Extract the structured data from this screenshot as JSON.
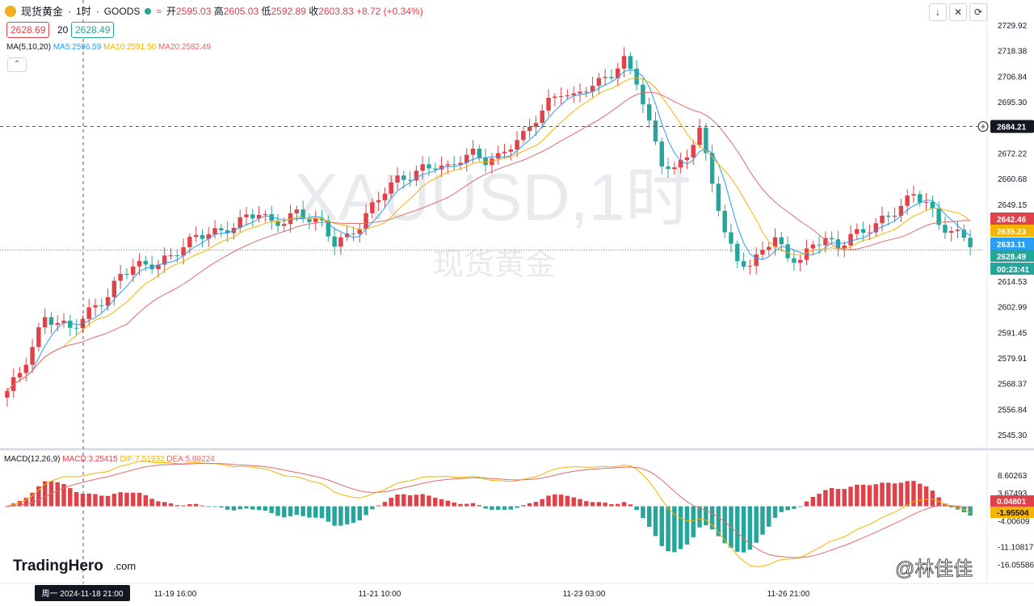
{
  "header": {
    "symbol_name": "现货黄金",
    "interval": "1时",
    "source": "GOODS",
    "open_label": "开",
    "open": "2595.03",
    "high_label": "高",
    "high": "2605.03",
    "low_label": "低",
    "low": "2592.89",
    "close_label": "收",
    "close": "2603.83",
    "change": "+8.72 (+0.34%)"
  },
  "trade": {
    "sell": "2628.69",
    "spread": "20",
    "buy": "2628.49"
  },
  "ma_legend": {
    "label": "MA(5,10,20)",
    "ma5": "MA5:2596.59",
    "ma10": "MA10:2591.50",
    "ma20": "MA20:2582.49"
  },
  "macd_legend": {
    "label": "MACD(12,26,9)",
    "macd": "MACD:3.25415",
    "dif": "DIF:7.51932",
    "dea": "DEA:5.89224"
  },
  "watermark": {
    "line1": "XAUUSD,1时",
    "line2": "现货黄金"
  },
  "brand": {
    "name": "TradingHero",
    "suffix": ".com"
  },
  "author": "@林佳佳",
  "colors": {
    "up": "#e0424a",
    "down": "#26a69a",
    "ma5": "#2a9df4",
    "ma10": "#f5b400",
    "ma20": "#e26b6b"
  },
  "chart_data": [
    {
      "type": "candlestick",
      "title": "现货黄金 · 1时 · GOODS",
      "ylim": [
        2545.3,
        2729.92
      ],
      "y_ticks": [
        "2729.92",
        "2718.38",
        "2706.84",
        "2695.30",
        "2672.22",
        "2660.68",
        "2649.15",
        "2614.53",
        "2602.99",
        "2591.45",
        "2579.91",
        "2568.37",
        "2556.84",
        "2545.30"
      ],
      "x_ticks": [
        "11-19 16:00",
        "11-21 10:00",
        "11-23 03:00",
        "11-26 21:00"
      ],
      "crosshair_x_label": "周一 2024-11-18  21:00",
      "crosshair_price": "2684.21",
      "price_badges": [
        {
          "value": "2642.46",
          "color": "#e0424a"
        },
        {
          "value": "2635.23",
          "color": "#f5b400"
        },
        {
          "value": "2633.11",
          "color": "#2a9df4"
        },
        {
          "value": "2628.49",
          "color": "#26a69a"
        },
        {
          "value": "00:23:41",
          "color": "#26a69a"
        }
      ],
      "series_names": [
        "MA5",
        "MA10",
        "MA20"
      ],
      "close_path": [
        2565,
        2573,
        2585,
        2598,
        2596,
        2593,
        2598,
        2603,
        2608,
        2617,
        2622,
        2621,
        2623,
        2625,
        2631,
        2634,
        2637,
        2636,
        2640,
        2643,
        2646,
        2640,
        2642,
        2645,
        2643,
        2640,
        2632,
        2634,
        2640,
        2648,
        2656,
        2660,
        2662,
        2665,
        2667,
        2665,
        2670,
        2672,
        2669,
        2670,
        2676,
        2680,
        2688,
        2695,
        2700,
        2697,
        2702,
        2704,
        2708,
        2714,
        2705,
        2685,
        2668,
        2664,
        2672,
        2682,
        2660,
        2635,
        2625,
        2620,
        2630,
        2633,
        2626,
        2623,
        2632,
        2633,
        2630,
        2635,
        2637,
        2640,
        2644,
        2648,
        2654,
        2650,
        2640,
        2637,
        2634,
        2630
      ]
    },
    {
      "type": "macd",
      "ylim": [
        -18.6,
        11.5
      ],
      "y_ticks": [
        "8.60263",
        "3.67493",
        "-4.00609",
        "-11.10817",
        "-16.05586"
      ],
      "value_badges": [
        {
          "value": "0.04801",
          "color": "#e0424a"
        },
        {
          "value": "-1.95504",
          "color": "#f5b400"
        }
      ]
    }
  ]
}
